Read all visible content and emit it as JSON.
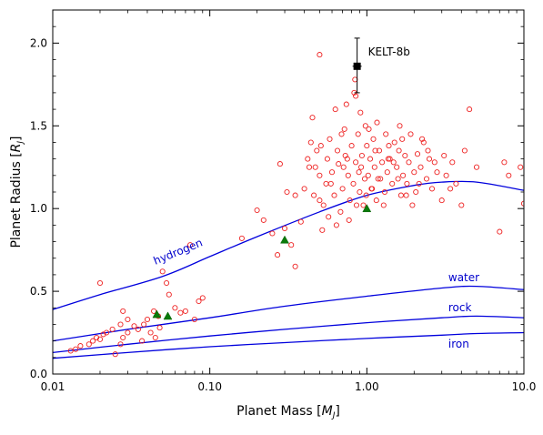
{
  "chart_data": {
    "type": "scatter",
    "xlabel_main": "Planet Mass [",
    "xlabel_sub": "J",
    "xlabel_unit": "M",
    "ylabel_main": "Planet Radius [",
    "ylabel_unit": "R",
    "ylabel_sub": "J",
    "xscale": "log",
    "xlim": [
      0.01,
      10.0
    ],
    "ylim": [
      0.0,
      2.2
    ],
    "x_ticks": [
      {
        "value": 0.01,
        "label": "0.01"
      },
      {
        "value": 0.1,
        "label": "0.10"
      },
      {
        "value": 1.0,
        "label": "1.00"
      },
      {
        "value": 10.0,
        "label": "10.0"
      }
    ],
    "y_ticks": [
      {
        "value": 0.0,
        "label": "0.0"
      },
      {
        "value": 0.5,
        "label": "0.5"
      },
      {
        "value": 1.0,
        "label": "1.0"
      },
      {
        "value": 1.5,
        "label": "1.5"
      },
      {
        "value": 2.0,
        "label": "2.0"
      }
    ],
    "grid": false,
    "annotation": {
      "text": "KELT-8b",
      "x": 0.867,
      "y": 1.86,
      "yerr_low": 0.16,
      "yerr_high": 0.17
    },
    "composition_curves": [
      {
        "name": "hydrogen",
        "label_x": 0.045,
        "label_y": 0.66,
        "rotation": -22,
        "points": [
          [
            0.01,
            0.39
          ],
          [
            0.02,
            0.48
          ],
          [
            0.05,
            0.59
          ],
          [
            0.1,
            0.71
          ],
          [
            0.2,
            0.83
          ],
          [
            0.5,
            0.98
          ],
          [
            1.0,
            1.08
          ],
          [
            2.0,
            1.14
          ],
          [
            3.0,
            1.16
          ],
          [
            5.0,
            1.16
          ],
          [
            10.0,
            1.11
          ]
        ]
      },
      {
        "name": "water",
        "label_x": 3.3,
        "label_y": 0.56,
        "rotation": 0,
        "points": [
          [
            0.01,
            0.2
          ],
          [
            0.03,
            0.27
          ],
          [
            0.1,
            0.34
          ],
          [
            0.3,
            0.41
          ],
          [
            1.0,
            0.47
          ],
          [
            3.0,
            0.52
          ],
          [
            5.0,
            0.53
          ],
          [
            10.0,
            0.51
          ]
        ]
      },
      {
        "name": "rock",
        "label_x": 3.3,
        "label_y": 0.38,
        "rotation": 0,
        "points": [
          [
            0.01,
            0.13
          ],
          [
            0.03,
            0.18
          ],
          [
            0.1,
            0.23
          ],
          [
            0.3,
            0.27
          ],
          [
            1.0,
            0.31
          ],
          [
            3.0,
            0.34
          ],
          [
            5.0,
            0.35
          ],
          [
            10.0,
            0.34
          ]
        ]
      },
      {
        "name": "iron",
        "label_x": 3.3,
        "label_y": 0.16,
        "rotation": 0,
        "points": [
          [
            0.01,
            0.095
          ],
          [
            0.03,
            0.13
          ],
          [
            0.1,
            0.165
          ],
          [
            0.3,
            0.19
          ],
          [
            1.0,
            0.215
          ],
          [
            3.0,
            0.235
          ],
          [
            5.0,
            0.245
          ],
          [
            10.0,
            0.25
          ]
        ]
      }
    ],
    "solar_system_planets": [
      {
        "x": 0.046,
        "y": 0.36
      },
      {
        "x": 0.054,
        "y": 0.35
      },
      {
        "x": 0.3,
        "y": 0.81
      },
      {
        "x": 1.0,
        "y": 1.0
      }
    ],
    "exoplanets": [
      [
        0.013,
        0.14
      ],
      [
        0.014,
        0.15
      ],
      [
        0.015,
        0.17
      ],
      [
        0.017,
        0.18
      ],
      [
        0.018,
        0.2
      ],
      [
        0.019,
        0.22
      ],
      [
        0.02,
        0.21
      ],
      [
        0.021,
        0.24
      ],
      [
        0.02,
        0.55
      ],
      [
        0.022,
        0.25
      ],
      [
        0.024,
        0.27
      ],
      [
        0.025,
        0.12
      ],
      [
        0.027,
        0.18
      ],
      [
        0.028,
        0.22
      ],
      [
        0.03,
        0.25
      ],
      [
        0.027,
        0.3
      ],
      [
        0.03,
        0.33
      ],
      [
        0.028,
        0.38
      ],
      [
        0.033,
        0.29
      ],
      [
        0.035,
        0.27
      ],
      [
        0.038,
        0.3
      ],
      [
        0.04,
        0.33
      ],
      [
        0.037,
        0.2
      ],
      [
        0.042,
        0.25
      ],
      [
        0.045,
        0.22
      ],
      [
        0.044,
        0.38
      ],
      [
        0.047,
        0.35
      ],
      [
        0.048,
        0.28
      ],
      [
        0.05,
        0.62
      ],
      [
        0.053,
        0.55
      ],
      [
        0.055,
        0.48
      ],
      [
        0.06,
        0.4
      ],
      [
        0.065,
        0.37
      ],
      [
        0.07,
        0.38
      ],
      [
        0.075,
        0.78
      ],
      [
        0.08,
        0.33
      ],
      [
        0.085,
        0.44
      ],
      [
        0.09,
        0.46
      ],
      [
        0.16,
        0.82
      ],
      [
        0.2,
        0.99
      ],
      [
        0.22,
        0.93
      ],
      [
        0.25,
        0.85
      ],
      [
        0.27,
        0.72
      ],
      [
        0.3,
        0.88
      ],
      [
        0.33,
        0.78
      ],
      [
        0.35,
        0.65
      ],
      [
        0.38,
        0.92
      ],
      [
        0.31,
        1.1
      ],
      [
        0.28,
        1.27
      ],
      [
        0.35,
        1.08
      ],
      [
        0.4,
        1.12
      ],
      [
        0.42,
        1.3
      ],
      [
        0.44,
        1.4
      ],
      [
        0.45,
        1.55
      ],
      [
        0.47,
        1.25
      ],
      [
        0.48,
        1.35
      ],
      [
        0.5,
        1.05
      ],
      [
        0.5,
        1.2
      ],
      [
        0.52,
        0.87
      ],
      [
        0.53,
        1.02
      ],
      [
        0.55,
        1.15
      ],
      [
        0.56,
        1.3
      ],
      [
        0.58,
        1.42
      ],
      [
        0.6,
        1.22
      ],
      [
        0.62,
        1.08
      ],
      [
        0.63,
        1.6
      ],
      [
        0.65,
        1.35
      ],
      [
        0.66,
        1.27
      ],
      [
        0.68,
        0.98
      ],
      [
        0.7,
        1.12
      ],
      [
        0.72,
        1.48
      ],
      [
        0.74,
        1.63
      ],
      [
        0.75,
        1.3
      ],
      [
        0.76,
        1.2
      ],
      [
        0.78,
        1.05
      ],
      [
        0.8,
        1.38
      ],
      [
        0.82,
        1.15
      ],
      [
        0.83,
        1.7
      ],
      [
        0.84,
        1.78
      ],
      [
        0.85,
        1.28
      ],
      [
        0.88,
        1.45
      ],
      [
        0.9,
        1.1
      ],
      [
        0.92,
        1.25
      ],
      [
        0.93,
        1.32
      ],
      [
        0.95,
        1.02
      ],
      [
        0.97,
        1.18
      ],
      [
        0.98,
        1.5
      ],
      [
        1.0,
        1.38
      ],
      [
        1.02,
        1.2
      ],
      [
        1.05,
        1.3
      ],
      [
        1.08,
        1.12
      ],
      [
        1.1,
        1.42
      ],
      [
        1.12,
        1.25
      ],
      [
        1.15,
        1.05
      ],
      [
        1.2,
        1.35
      ],
      [
        1.22,
        1.18
      ],
      [
        1.25,
        1.28
      ],
      [
        1.3,
        1.1
      ],
      [
        1.32,
        1.45
      ],
      [
        1.35,
        1.22
      ],
      [
        1.4,
        1.3
      ],
      [
        1.45,
        1.15
      ],
      [
        1.5,
        1.4
      ],
      [
        1.55,
        1.25
      ],
      [
        1.6,
        1.35
      ],
      [
        1.65,
        1.08
      ],
      [
        1.7,
        1.2
      ],
      [
        1.75,
        1.32
      ],
      [
        1.8,
        1.15
      ],
      [
        1.85,
        1.28
      ],
      [
        1.9,
        1.45
      ],
      [
        2.0,
        1.22
      ],
      [
        2.05,
        1.1
      ],
      [
        2.1,
        1.33
      ],
      [
        2.2,
        1.25
      ],
      [
        2.3,
        1.4
      ],
      [
        2.4,
        1.18
      ],
      [
        2.5,
        1.3
      ],
      [
        2.6,
        1.12
      ],
      [
        2.8,
        1.22
      ],
      [
        3.0,
        1.05
      ],
      [
        3.2,
        1.2
      ],
      [
        3.5,
        1.28
      ],
      [
        3.7,
        1.15
      ],
      [
        4.0,
        1.02
      ],
      [
        4.2,
        1.35
      ],
      [
        4.5,
        1.6
      ],
      [
        5.0,
        1.25
      ],
      [
        7.0,
        0.86
      ],
      [
        7.5,
        1.28
      ],
      [
        8.0,
        1.2
      ],
      [
        9.5,
        1.25
      ],
      [
        10.0,
        1.03
      ],
      [
        0.5,
        1.93
      ],
      [
        0.85,
        1.68
      ],
      [
        0.43,
        1.25
      ],
      [
        0.46,
        1.08
      ],
      [
        0.51,
        1.38
      ],
      [
        0.57,
        0.95
      ],
      [
        0.69,
        1.45
      ],
      [
        0.71,
        1.25
      ],
      [
        0.77,
        0.93
      ],
      [
        0.86,
        1.02
      ],
      [
        0.91,
        1.58
      ],
      [
        0.99,
        1.08
      ],
      [
        1.03,
        1.48
      ],
      [
        1.13,
        1.35
      ],
      [
        1.18,
        1.18
      ],
      [
        1.28,
        1.02
      ],
      [
        1.38,
        1.38
      ],
      [
        1.48,
        1.28
      ],
      [
        1.58,
        1.18
      ],
      [
        1.68,
        1.42
      ],
      [
        1.78,
        1.08
      ],
      [
        2.15,
        1.15
      ],
      [
        2.45,
        1.35
      ],
      [
        2.7,
        1.28
      ],
      [
        3.1,
        1.32
      ],
      [
        3.4,
        1.12
      ],
      [
        1.95,
        1.02
      ],
      [
        0.64,
        0.9
      ],
      [
        0.59,
        1.15
      ],
      [
        0.89,
        1.22
      ],
      [
        0.73,
        1.32
      ],
      [
        1.07,
        1.12
      ],
      [
        1.16,
        1.52
      ],
      [
        1.37,
        1.3
      ],
      [
        1.62,
        1.5
      ],
      [
        2.25,
        1.42
      ]
    ]
  }
}
